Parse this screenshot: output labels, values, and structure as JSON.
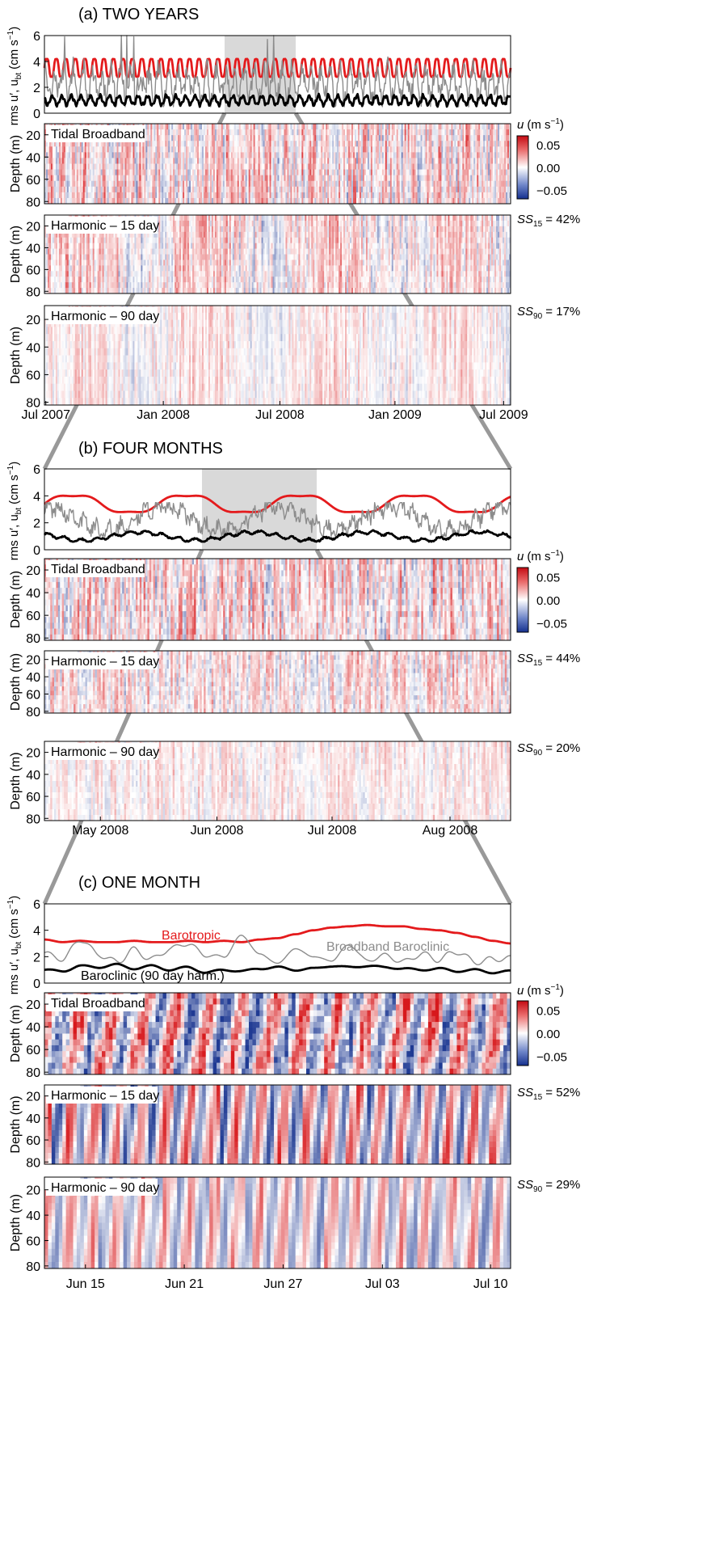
{
  "figure": {
    "line_colors": {
      "barotropic": "#e41a1c",
      "broadband": "#8c8c8c",
      "baroclinic": "#000000",
      "zoom_box": "#d9d9d9",
      "zoom_lines": "#999999"
    },
    "colormap": {
      "low": "#1f3a93",
      "mid": "#ffffff",
      "high": "#d7191c"
    }
  },
  "chart_data": [
    {
      "id": "a",
      "type": "line",
      "title": "(a) TWO YEARS",
      "ylabel": "rms u′, u",
      "ylabel_sub": "bt",
      "ylabel_units": "(cm s",
      "ylabel_units_sup": "−1",
      "ylabel_close": ")",
      "ylim": [
        0,
        6
      ],
      "yticks": [
        "0",
        "2",
        "4",
        "6"
      ],
      "xticks": [
        "Jul 2007",
        "Jan 2008",
        "Jul 2008",
        "Jan 2009",
        "Jul 2009"
      ],
      "highlight": {
        "from": "May 2008",
        "to": "Aug 2008"
      },
      "series": [
        {
          "key": "barotropic",
          "mean": 3.5,
          "amp": 0.8,
          "min": 2.5,
          "max": 4.5,
          "period_days": 14.8
        },
        {
          "key": "broadband",
          "mean": 2.3,
          "amp": 1.0,
          "min": 0.5,
          "max": 6.0,
          "spikes": [
            5.9,
            6.0,
            5.8,
            5.7
          ]
        },
        {
          "key": "baroclinic",
          "mean": 1.0,
          "amp": 0.35,
          "min": 0.3,
          "max": 1.6
        }
      ],
      "panels": [
        {
          "label": "Tidal Broadband",
          "ss": "",
          "ss_sub": "",
          "ss_value": ""
        },
        {
          "label": "Harmonic – 15 day",
          "ss": "SS",
          "ss_sub": "15",
          "ss_value": " = 42%"
        },
        {
          "label": "Harmonic – 90 day",
          "ss": "SS",
          "ss_sub": "90",
          "ss_value": " = 17%"
        }
      ],
      "depth_label": "Depth (m)",
      "depth_ticks": [
        "20",
        "40",
        "60",
        "80"
      ],
      "colorbar": {
        "label": "u",
        "units": "(m s",
        "units_sup": "−1",
        "units_close": ")",
        "ticks": [
          "0.05",
          "0.00",
          "−0.05"
        ],
        "range": [
          -0.07,
          0.07
        ]
      }
    },
    {
      "id": "b",
      "type": "line",
      "title": "(b) FOUR MONTHS",
      "ylabel": "rms u′, u",
      "ylabel_sub": "bt",
      "ylabel_units": "(cm s",
      "ylabel_units_sup": "−1",
      "ylabel_close": ")",
      "ylim": [
        0,
        6
      ],
      "yticks": [
        "0",
        "2",
        "4",
        "6"
      ],
      "xticks": [
        "May 2008",
        "Jun 2008",
        "Jul 2008",
        "Aug 2008"
      ],
      "highlight": {
        "from": "Jun 2008",
        "to": "Jul 2008"
      },
      "series": [
        {
          "key": "barotropic",
          "mean": 3.4,
          "amp": 0.7,
          "min": 2.6,
          "max": 4.4,
          "period_days": 29.5
        },
        {
          "key": "broadband",
          "mean": 2.3,
          "amp": 0.9,
          "min": 1.0,
          "max": 3.5
        },
        {
          "key": "baroclinic",
          "mean": 1.0,
          "amp": 0.3,
          "min": 0.6,
          "max": 1.5
        }
      ],
      "panels": [
        {
          "label": "Tidal Broadband",
          "ss": "",
          "ss_sub": "",
          "ss_value": ""
        },
        {
          "label": "Harmonic – 15 day",
          "ss": "SS",
          "ss_sub": "15",
          "ss_value": " = 44%"
        },
        {
          "label": "Harmonic – 90 day",
          "ss": "SS",
          "ss_sub": "90",
          "ss_value": " = 20%"
        }
      ],
      "depth_label": "Depth (m)",
      "depth_ticks": [
        "20",
        "40",
        "60",
        "80"
      ],
      "colorbar": {
        "label": "u",
        "units": "(m s",
        "units_sup": "−1",
        "units_close": ")",
        "ticks": [
          "0.05",
          "0.00",
          "−0.05"
        ],
        "range": [
          -0.07,
          0.07
        ]
      }
    },
    {
      "id": "c",
      "type": "line",
      "title": "(c) ONE MONTH",
      "ylabel": "rms u′, u",
      "ylabel_sub": "bt",
      "ylabel_units": "(cm s",
      "ylabel_units_sup": "−1",
      "ylabel_close": ")",
      "ylim": [
        0,
        6
      ],
      "yticks": [
        "0",
        "2",
        "4",
        "6"
      ],
      "xticks": [
        "Jun 15",
        "Jun 21",
        "Jun 27",
        "Jul 03",
        "Jul 10"
      ],
      "annotations": {
        "barotropic": "Barotropic",
        "broadband": "Broadband Baroclinic",
        "baroclinic": "Baroclinic (90 day harm.)"
      },
      "series": [
        {
          "key": "barotropic",
          "values_by_day": [
            3.3,
            3.1,
            3.2,
            3.1,
            3.1,
            3.2,
            3.1,
            3.1,
            3.2,
            3.1,
            3.2,
            3.1,
            3.3,
            3.4,
            3.7,
            4.0,
            4.2,
            4.3,
            4.4,
            4.3,
            4.3,
            4.1,
            4.0,
            3.8,
            3.5,
            3.2,
            3.0
          ]
        },
        {
          "key": "broadband",
          "values_by_day": [
            2.3,
            1.8,
            3.3,
            2.2,
            1.6,
            2.5,
            1.8,
            2.6,
            3.0,
            2.1,
            2.0,
            3.6,
            2.2,
            1.5,
            2.6,
            2.0,
            1.7,
            2.9,
            1.7,
            2.1,
            1.6,
            2.2,
            1.8,
            2.4,
            1.6,
            1.8,
            1.9
          ]
        },
        {
          "key": "baroclinic",
          "values_by_day": [
            1.0,
            0.9,
            1.3,
            1.2,
            1.4,
            1.1,
            1.3,
            1.0,
            1.2,
            0.8,
            1.0,
            0.9,
            1.1,
            1.2,
            1.0,
            1.1,
            1.3,
            1.2,
            1.3,
            1.2,
            1.1,
            1.0,
            1.1,
            0.9,
            1.0,
            0.8,
            0.9
          ]
        }
      ],
      "panels": [
        {
          "label": "Tidal Broadband",
          "ss": "",
          "ss_sub": "",
          "ss_value": ""
        },
        {
          "label": "Harmonic – 15 day",
          "ss": "SS",
          "ss_sub": "15",
          "ss_value": " = 52%"
        },
        {
          "label": "Harmonic – 90 day",
          "ss": "SS",
          "ss_sub": "90",
          "ss_value": " = 29%"
        }
      ],
      "depth_label": "Depth (m)",
      "depth_ticks": [
        "20",
        "40",
        "60",
        "80"
      ],
      "colorbar": {
        "label": "u",
        "units": "(m s",
        "units_sup": "−1",
        "units_close": ")",
        "ticks": [
          "0.05",
          "0.00",
          "−0.05"
        ],
        "range": [
          -0.07,
          0.07
        ]
      }
    }
  ]
}
